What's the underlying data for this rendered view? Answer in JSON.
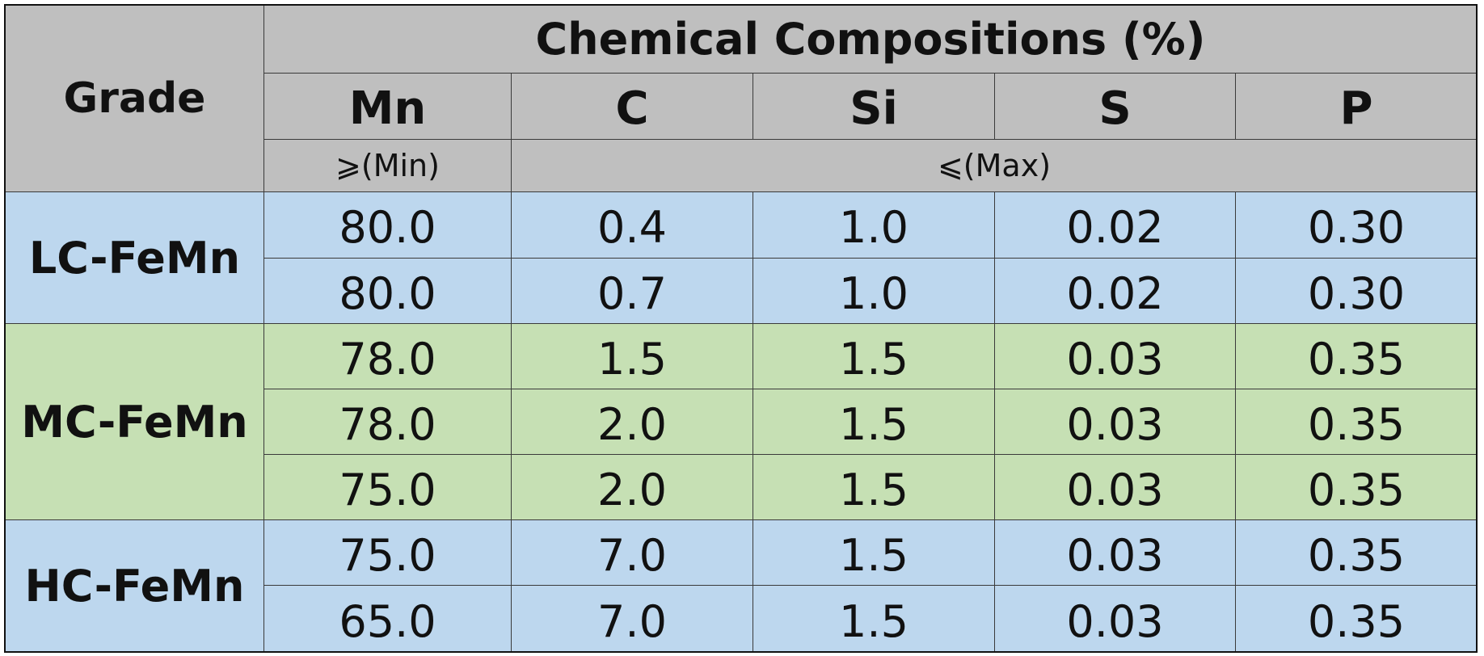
{
  "header": {
    "grade": "Grade",
    "title": "Chemical Compositions (%)",
    "columns": [
      "Mn",
      "C",
      "Si",
      "S",
      "P"
    ],
    "min": "⩾(Min)",
    "max": "⩽(Max)"
  },
  "groups": [
    {
      "grade": "LC-FeMn",
      "rows": [
        [
          "80.0",
          "0.4",
          "1.0",
          "0.02",
          "0.30"
        ],
        [
          "80.0",
          "0.7",
          "1.0",
          "0.02",
          "0.30"
        ]
      ]
    },
    {
      "grade": "MC-FeMn",
      "rows": [
        [
          "78.0",
          "1.5",
          "1.5",
          "0.03",
          "0.35"
        ],
        [
          "78.0",
          "2.0",
          "1.5",
          "0.03",
          "0.35"
        ],
        [
          "75.0",
          "2.0",
          "1.5",
          "0.03",
          "0.35"
        ]
      ]
    },
    {
      "grade": "HC-FeMn",
      "rows": [
        [
          "75.0",
          "7.0",
          "1.5",
          "0.03",
          "0.35"
        ],
        [
          "65.0",
          "7.0",
          "1.5",
          "0.03",
          "0.35"
        ]
      ]
    }
  ]
}
